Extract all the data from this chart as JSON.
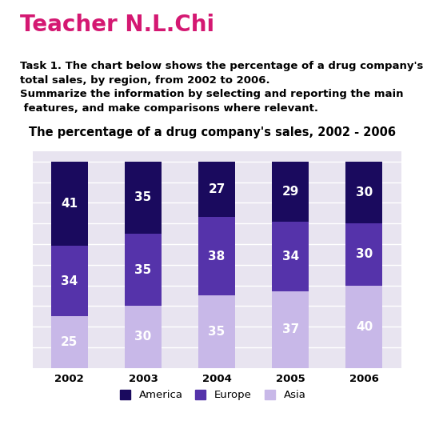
{
  "title": "The percentage of a drug company's sales, 2002 - 2006",
  "header_title": "Teacher N.L.Chi",
  "header_line1": "Task 1. The chart below shows the percentage of a drug company's",
  "header_line2": "total sales, by region, from 2002 to 2006.",
  "header_line3": "Summarize the information by selecting and reporting the main",
  "header_line4": " features, and make comparisons where relevant.",
  "years": [
    "2002",
    "2003",
    "2004",
    "2005",
    "2006"
  ],
  "america": [
    41,
    35,
    27,
    29,
    30
  ],
  "europe": [
    34,
    35,
    38,
    34,
    30
  ],
  "asia": [
    25,
    30,
    35,
    37,
    40
  ],
  "color_america": "#1a0a5e",
  "color_europe": "#5533aa",
  "color_asia": "#c8b8e8",
  "background_color": "#e8e4f0",
  "header_bg": "#ffffff",
  "bar_width": 0.5,
  "ylim": [
    0,
    105
  ],
  "legend_labels": [
    "America",
    "Europe",
    "Asia"
  ],
  "title_fontsize": 10.5,
  "label_fontsize": 11,
  "header_title_color": "#d41872",
  "header_title_fontsize": 20,
  "header_subtitle_fontsize": 9.5
}
